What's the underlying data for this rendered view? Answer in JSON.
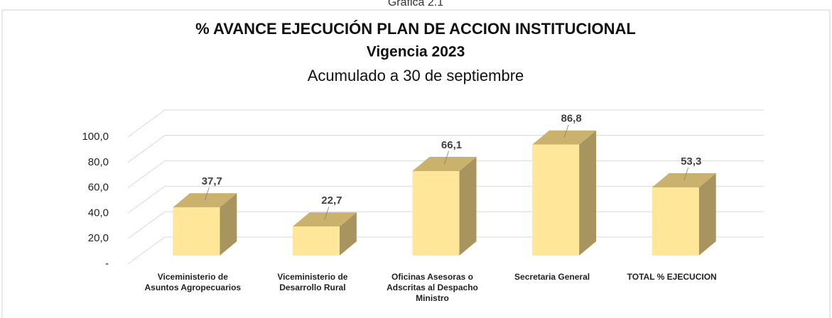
{
  "chart_data": {
    "type": "bar3d",
    "caption": "Gráfica 2.1",
    "title": "% AVANCE EJECUCIÓN PLAN DE ACCION INSTITUCIONAL",
    "title_line2": "Vigencia 2023",
    "subtitle": "Acumulado a 30 de septiembre",
    "categories": [
      "Viceministerio de Asuntos Agropecuarios",
      "Viceministerio de Desarrollo Rural",
      "Oficinas Asesoras o Adscritas al Despacho Ministro",
      "Secretaria General",
      "TOTAL % EJECUCION"
    ],
    "values": [
      37.7,
      22.7,
      66.1,
      86.8,
      53.3
    ],
    "value_labels": [
      "37,7",
      "22,7",
      "66,1",
      "86,8",
      "53,3"
    ],
    "color": "#ffe699",
    "ylim": [
      0,
      100
    ],
    "yticks": [
      {
        "value": 0,
        "label": "-"
      },
      {
        "value": 20,
        "label": "20,0"
      },
      {
        "value": 40,
        "label": "40,0"
      },
      {
        "value": 60,
        "label": "60,0"
      },
      {
        "value": 80,
        "label": "80,0"
      },
      {
        "value": 100,
        "label": "100,0"
      }
    ],
    "grid": true
  }
}
